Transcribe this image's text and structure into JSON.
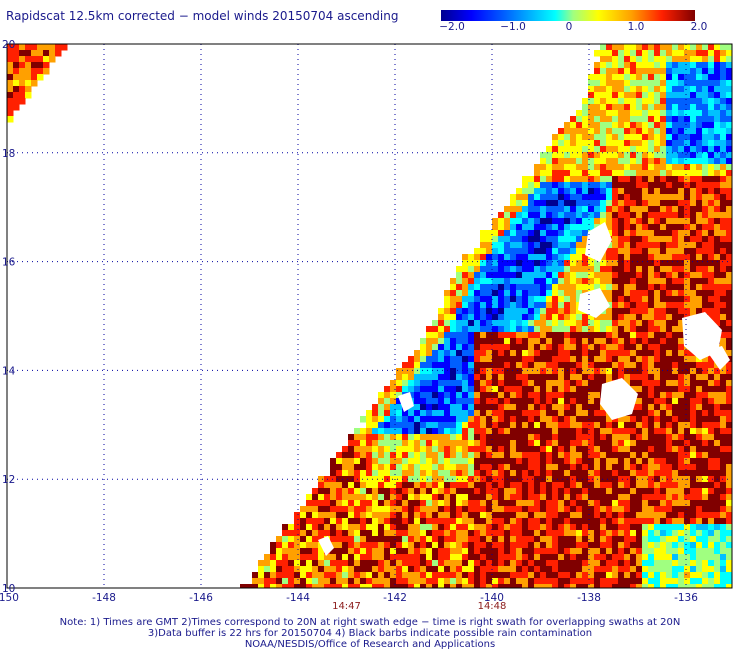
{
  "title": "Rapidscat 12.5km corrected − model winds 20150704 ascending",
  "colorbar": {
    "labels": [
      "−2.0",
      "−1.0",
      "0",
      "1.0",
      "2.0"
    ],
    "values": [
      -2.0,
      -1.0,
      0,
      1.0,
      2.0
    ],
    "colors": [
      "#000090",
      "#0000ff",
      "#0060ff",
      "#00c0ff",
      "#00ffff",
      "#a0ff80",
      "#ffff00",
      "#ffa000",
      "#ff2000",
      "#800000"
    ]
  },
  "map": {
    "lon_range": [
      -150,
      -135
    ],
    "lat_range": [
      10,
      20
    ],
    "x_ticks": [
      {
        "value": -150,
        "label": "-150"
      },
      {
        "value": -148,
        "label": "-148"
      },
      {
        "value": -146,
        "label": "-146"
      },
      {
        "value": -144,
        "label": "-144"
      },
      {
        "value": -142,
        "label": "-142"
      },
      {
        "value": -140,
        "label": "-140"
      },
      {
        "value": -138,
        "label": "-138"
      },
      {
        "value": -136,
        "label": "-136"
      }
    ],
    "y_ticks": [
      {
        "value": 20,
        "label": "20"
      },
      {
        "value": 18,
        "label": "18"
      },
      {
        "value": 16,
        "label": "16"
      },
      {
        "value": 14,
        "label": "14"
      },
      {
        "value": 12,
        "label": "12"
      },
      {
        "value": 10,
        "label": "10"
      }
    ],
    "time_labels": [
      {
        "lon": -143.0,
        "label": "14:47"
      },
      {
        "lon": -140.0,
        "label": "14:48"
      }
    ],
    "time_color": "#8b1a1a",
    "grid": "dotted"
  },
  "notes": [
    "Note: 1) Times are GMT 2)Times correspond to 20N at right swath edge − time is right swath for overlapping swaths at 20N",
    "3)Data buffer is 22 hrs for 20150704 4) Black barbs indicate possible rain contamination",
    "NOAA/NESDIS/Office of Research and Applications"
  ]
}
